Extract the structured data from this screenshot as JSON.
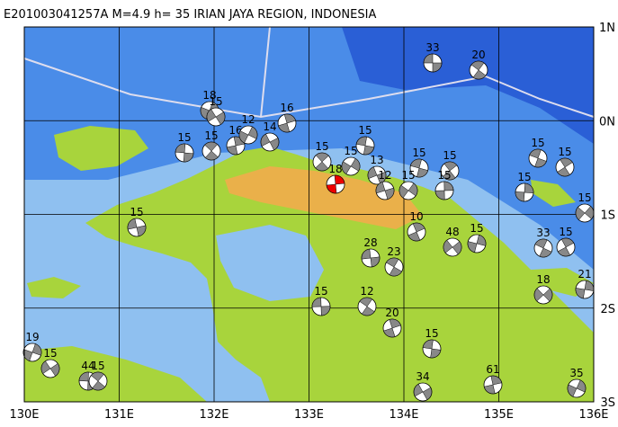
{
  "header": {
    "title": "E201003041257A M=4.9 h= 35 IRIAN JAYA REGION, INDONESIA"
  },
  "axes": {
    "lon": [
      "130E",
      "131E",
      "132E",
      "133E",
      "134E",
      "135E",
      "136E"
    ],
    "lat": [
      "1N",
      "0N",
      "1S",
      "2S",
      "3S"
    ]
  },
  "events": [
    "33",
    "20",
    "16",
    "18",
    "15",
    "15",
    "15",
    "16",
    "12",
    "14",
    "15",
    "15",
    "18",
    "15",
    "13",
    "15",
    "15",
    "15",
    "15",
    "12",
    "15",
    "15",
    "15",
    "15",
    "15",
    "33",
    "15",
    "21",
    "18",
    "28",
    "23",
    "10",
    "15",
    "48",
    "15",
    "12",
    "20",
    "19",
    "15",
    "44",
    "15",
    "61",
    "35",
    "34",
    "15"
  ]
}
